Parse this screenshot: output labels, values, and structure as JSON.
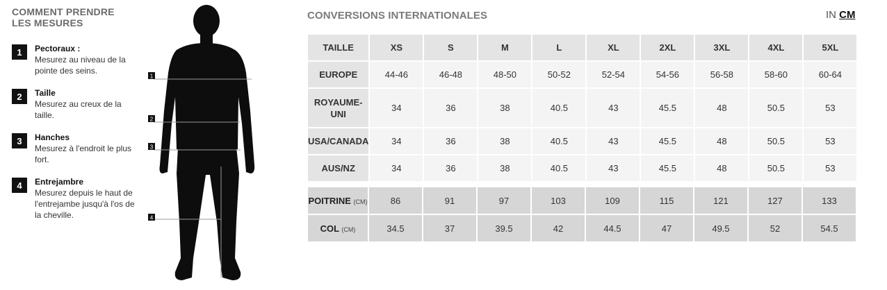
{
  "guide": {
    "title_line1": "COMMENT PRENDRE",
    "title_line2": "LES MESURES",
    "steps": [
      {
        "num": "1",
        "name": "Pectoraux :",
        "desc": "Mesurez au niveau de la pointe des seins."
      },
      {
        "num": "2",
        "name": "Taille",
        "desc": "Mesurez au creux de la taille."
      },
      {
        "num": "3",
        "name": "Hanches",
        "desc": "Mesurez à l'endroit le plus fort."
      },
      {
        "num": "4",
        "name": "Entrejambre",
        "desc": "Mesurez depuis le haut de l'entrejambe jusqu'à l'os de la cheville."
      }
    ]
  },
  "figure": {
    "markers": [
      "1",
      "2",
      "3",
      "4"
    ]
  },
  "conversions": {
    "title": "CONVERSIONS INTERNATIONALES",
    "unit_in": "IN",
    "unit_cm": "CM",
    "active_unit": "CM",
    "size_header": "TAILLE",
    "sizes": [
      "XS",
      "S",
      "M",
      "L",
      "XL",
      "2XL",
      "3XL",
      "4XL",
      "5XL"
    ],
    "rows": [
      {
        "label": "EUROPE",
        "values": [
          "44-46",
          "46-48",
          "48-50",
          "50-52",
          "52-54",
          "54-56",
          "56-58",
          "58-60",
          "60-64"
        ]
      },
      {
        "label": "ROYAUME-UNI",
        "values": [
          "34",
          "36",
          "38",
          "40.5",
          "43",
          "45.5",
          "48",
          "50.5",
          "53"
        ]
      },
      {
        "label": "USA/CANADA",
        "values": [
          "34",
          "36",
          "38",
          "40.5",
          "43",
          "45.5",
          "48",
          "50.5",
          "53"
        ]
      },
      {
        "label": "AUS/NZ",
        "values": [
          "34",
          "36",
          "38",
          "40.5",
          "43",
          "45.5",
          "48",
          "50.5",
          "53"
        ]
      }
    ],
    "body_rows": [
      {
        "label": "POITRINE",
        "unit": "(CM)",
        "values": [
          "86",
          "91",
          "97",
          "103",
          "109",
          "115",
          "121",
          "127",
          "133"
        ]
      },
      {
        "label": "COL",
        "unit": "(CM)",
        "values": [
          "34.5",
          "37",
          "39.5",
          "42",
          "44.5",
          "47",
          "49.5",
          "52",
          "54.5"
        ]
      }
    ]
  }
}
